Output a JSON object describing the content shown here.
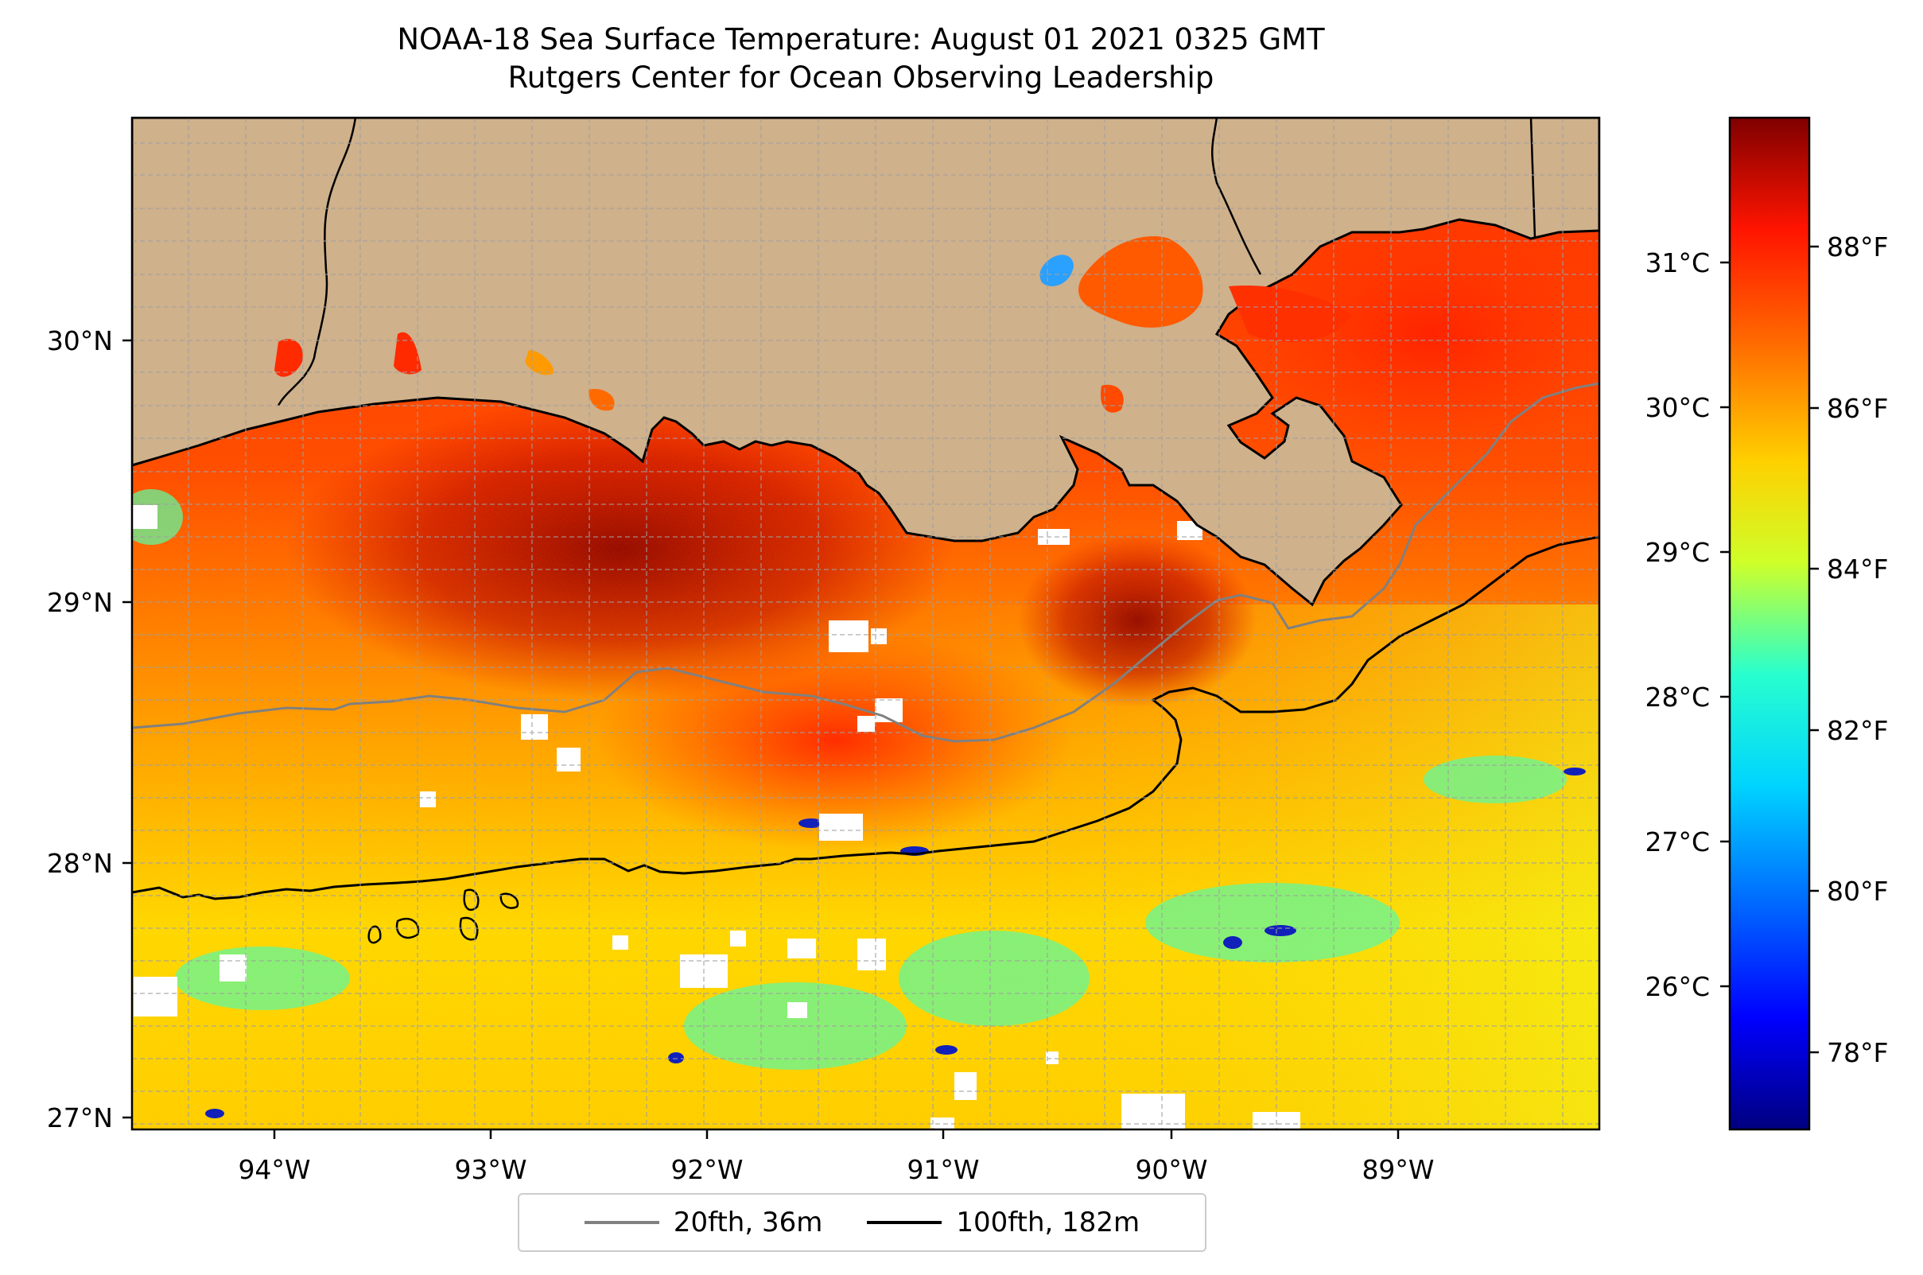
{
  "title": {
    "line1": "NOAA-18 Sea Surface Temperature: August 01 2021 0325 GMT",
    "line2": "Rutgers Center for Ocean Observing Leadership"
  },
  "map": {
    "lon_range": [
      -94.53,
      -88.18
    ],
    "lat_range": [
      26.95,
      30.83
    ],
    "lon_ticks": [
      "94°W",
      "93°W",
      "92°W",
      "91°W",
      "90°W",
      "89°W"
    ],
    "lat_ticks": [
      "30°N",
      "29°N",
      "28°N",
      "27°N"
    ],
    "grid": true,
    "land_color": "#cfb18b",
    "colormap": "jet"
  },
  "colorbar": {
    "celsius_ticks": [
      "31°C",
      "30°C",
      "29°C",
      "28°C",
      "27°C",
      "26°C"
    ],
    "fahrenheit_ticks": [
      "88°F",
      "86°F",
      "84°F",
      "82°F",
      "80°F",
      "78°F"
    ],
    "range_f": [
      77.0,
      89.6
    ]
  },
  "legend": {
    "position": "bottom-center",
    "items": [
      {
        "label": "20fth, 36m",
        "color": "#808080"
      },
      {
        "label": "100fth, 182m",
        "color": "#000000"
      }
    ]
  },
  "colors": {
    "hot": "#8b0000",
    "warm": "#ff3300",
    "mid": "#ffdd00",
    "cool": "#22ffd8",
    "cold": "#00008f",
    "no_data": "#ffffff"
  }
}
